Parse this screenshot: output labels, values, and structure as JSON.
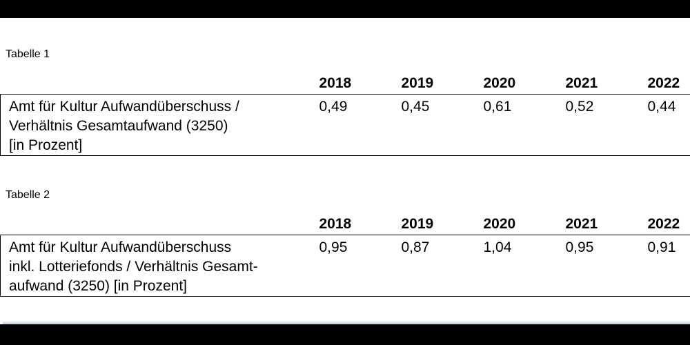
{
  "tables": [
    {
      "caption": "Tabelle 1",
      "years": [
        "2018",
        "2019",
        "2020",
        "2021",
        "2022"
      ],
      "row": {
        "label_lines": [
          "Amt für Kultur Aufwandüberschuss /",
          "Verhältnis Gesamtaufwand (3250)",
          "[in Prozent]"
        ],
        "values": [
          "0,49",
          "0,45",
          "0,61",
          "0,52",
          "0,44"
        ]
      }
    },
    {
      "caption": "Tabelle 2",
      "years": [
        "2018",
        "2019",
        "2020",
        "2021",
        "2022"
      ],
      "row": {
        "label_lines": [
          "Amt für Kultur Aufwandüberschuss",
          "inkl. Lotteriefonds / Verhältnis Gesamt-",
          "aufwand (3250) [in Prozent]"
        ],
        "values": [
          "0,95",
          "0,87",
          "1,04",
          "0,95",
          "0,91"
        ]
      }
    }
  ]
}
